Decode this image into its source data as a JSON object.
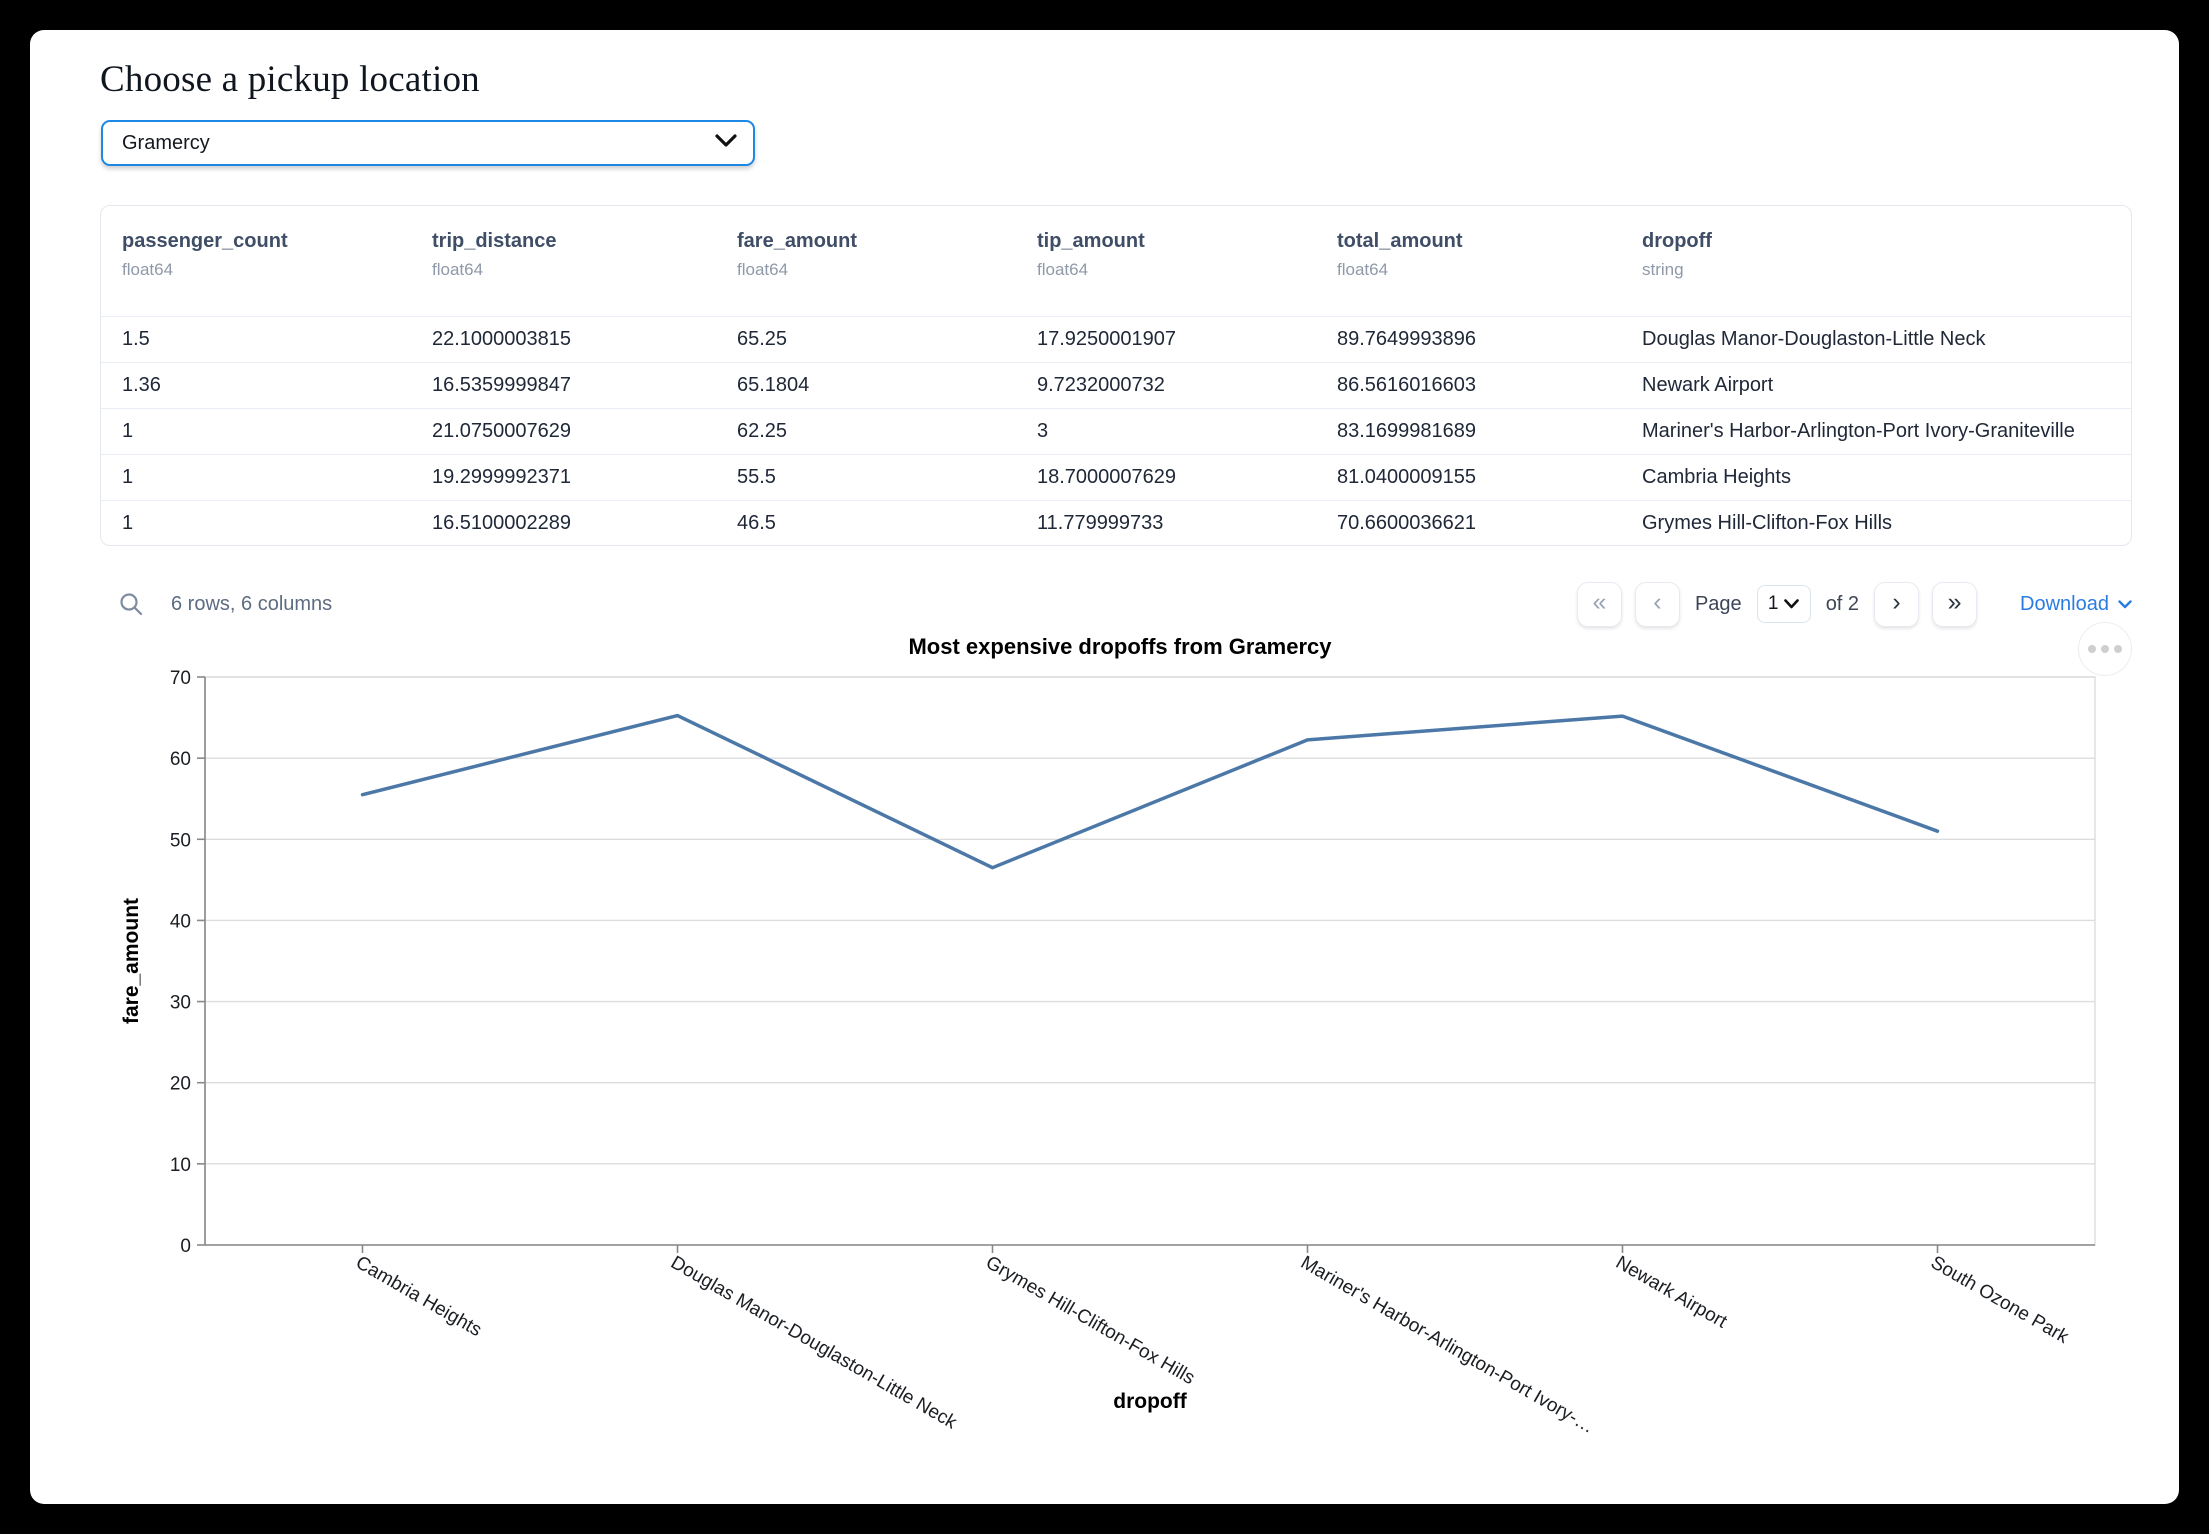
{
  "page": {
    "title": "Choose a pickup location"
  },
  "pickup_select": {
    "value": "Gramercy",
    "icon": "chevron-down-icon"
  },
  "table": {
    "columns": [
      {
        "name": "passenger_count",
        "type": "float64"
      },
      {
        "name": "trip_distance",
        "type": "float64"
      },
      {
        "name": "fare_amount",
        "type": "float64"
      },
      {
        "name": "tip_amount",
        "type": "float64"
      },
      {
        "name": "total_amount",
        "type": "float64"
      },
      {
        "name": "dropoff",
        "type": "string"
      }
    ],
    "rows": [
      [
        "1.5",
        "22.1000003815",
        "65.25",
        "17.9250001907",
        "89.7649993896",
        "Douglas Manor-Douglaston-Little Neck"
      ],
      [
        "1.36",
        "16.5359999847",
        "65.1804",
        "9.7232000732",
        "86.5616016603",
        "Newark Airport"
      ],
      [
        "1",
        "21.0750007629",
        "62.25",
        "3",
        "83.1699981689",
        "Mariner's Harbor-Arlington-Port Ivory-Graniteville"
      ],
      [
        "1",
        "19.2999992371",
        "55.5",
        "18.7000007629",
        "81.0400009155",
        "Cambria Heights"
      ],
      [
        "1",
        "16.5100002289",
        "46.5",
        "11.779999733",
        "70.6600036621",
        "Grymes Hill-Clifton-Fox Hills"
      ]
    ]
  },
  "footer": {
    "summary": "6 rows, 6 columns",
    "search_icon": "search-icon",
    "first_page": "«",
    "prev_page": "‹",
    "page_label": "Page",
    "page_value": "1",
    "page_of": "of 2",
    "next_page": "›",
    "last_page": "»",
    "download_label": "Download"
  },
  "chart_menu_icon": "ellipsis-menu-icon",
  "chart_data": {
    "type": "line",
    "title": "Most expensive dropoffs from Gramercy",
    "xlabel": "dropoff",
    "ylabel": "fare_amount",
    "categories": [
      "Cambria Heights",
      "Douglas Manor-Douglaston-Little Neck",
      "Grymes Hill-Clifton-Fox Hills",
      "Mariner's Harbor-Arlington-Port Ivory-Graniteville",
      "Newark Airport",
      "South Ozone Park"
    ],
    "x_tick_labels": [
      "Cambria Heights",
      "Douglas Manor-Douglaston-Little Neck",
      "Grymes Hill-Clifton-Fox Hills",
      "Mariner's Harbor-Arlington-Port Ivory-…",
      "Newark Airport",
      "South Ozone Park"
    ],
    "values": [
      55.5,
      65.25,
      46.5,
      62.25,
      65.1804,
      51
    ],
    "ylim": [
      0,
      70
    ],
    "yticks": [
      0,
      10,
      20,
      30,
      40,
      50,
      60,
      70
    ],
    "grid": true,
    "legend": "none",
    "line_color": "#4c78a8",
    "grid_color": "#dddddd",
    "axis_color": "#888888",
    "label_color": "#1b1e23"
  }
}
